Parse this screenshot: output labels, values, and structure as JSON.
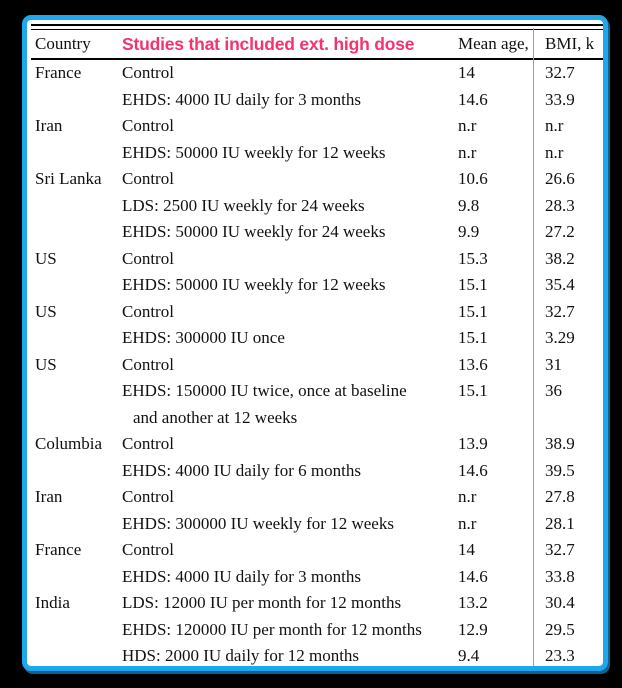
{
  "window": {
    "background": "#000000",
    "frame_border_color": "#1ea7ec",
    "frame_shadow_color": "#12608c"
  },
  "table": {
    "headers": {
      "country": "Country",
      "studies_annotation": "Studies that included ext. high dose",
      "mean_age": "Mean age,",
      "bmi": "BMI, k"
    },
    "annotation_color": "#f4336f",
    "rows": [
      {
        "country": "France",
        "study": "Control",
        "mean_age": "14",
        "bmi": "32.7"
      },
      {
        "country": "",
        "study": "EHDS: 4000 IU daily for 3 months",
        "mean_age": "14.6",
        "bmi": "33.9"
      },
      {
        "country": "Iran",
        "study": "Control",
        "mean_age": "n.r",
        "bmi": "n.r"
      },
      {
        "country": "",
        "study": "EHDS: 50000 IU weekly for 12 weeks",
        "mean_age": "n.r",
        "bmi": "n.r"
      },
      {
        "country": "Sri Lanka",
        "study": "Control",
        "mean_age": "10.6",
        "bmi": "26.6"
      },
      {
        "country": "",
        "study": "LDS: 2500 IU weekly for 24 weeks",
        "mean_age": "9.8",
        "bmi": "28.3"
      },
      {
        "country": "",
        "study": "EHDS: 50000 IU weekly for 24 weeks",
        "mean_age": "9.9",
        "bmi": "27.2"
      },
      {
        "country": "US",
        "study": "Control",
        "mean_age": "15.3",
        "bmi": "38.2"
      },
      {
        "country": "",
        "study": "EHDS: 50000 IU weekly for 12 weeks",
        "mean_age": "15.1",
        "bmi": "35.4"
      },
      {
        "country": "US",
        "study": "Control",
        "mean_age": "15.1",
        "bmi": "32.7"
      },
      {
        "country": "",
        "study": "EHDS: 300000 IU once",
        "mean_age": "15.1",
        "bmi": "3.29"
      },
      {
        "country": "US",
        "study": "Control",
        "mean_age": "13.6",
        "bmi": "31"
      },
      {
        "country": "",
        "study": "EHDS: 150000 IU twice, once at baseline",
        "study_line2": "and another at 12 weeks",
        "mean_age": "15.1",
        "bmi": "36"
      },
      {
        "country": "Columbia",
        "study": "Control",
        "mean_age": "13.9",
        "bmi": "38.9"
      },
      {
        "country": "",
        "study": "EHDS: 4000 IU daily for 6 months",
        "mean_age": "14.6",
        "bmi": "39.5"
      },
      {
        "country": "Iran",
        "study": "Control",
        "mean_age": "n.r",
        "bmi": "27.8"
      },
      {
        "country": "",
        "study": "EHDS: 300000 IU weekly for 12 weeks",
        "mean_age": "n.r",
        "bmi": "28.1"
      },
      {
        "country": "France",
        "study": "Control",
        "mean_age": "14",
        "bmi": "32.7"
      },
      {
        "country": "",
        "study": "EHDS: 4000 IU daily for 3 months",
        "mean_age": "14.6",
        "bmi": "33.8"
      },
      {
        "country": "India",
        "study": "LDS: 12000 IU per month for 12 months",
        "mean_age": "13.2",
        "bmi": "30.4"
      },
      {
        "country": "",
        "study": "EHDS: 120000 IU per month for 12 months",
        "mean_age": "12.9",
        "bmi": "29.5"
      },
      {
        "country": "",
        "study": "HDS: 2000 IU daily for 12 months",
        "mean_age": "9.4",
        "bmi": "23.3"
      }
    ]
  }
}
